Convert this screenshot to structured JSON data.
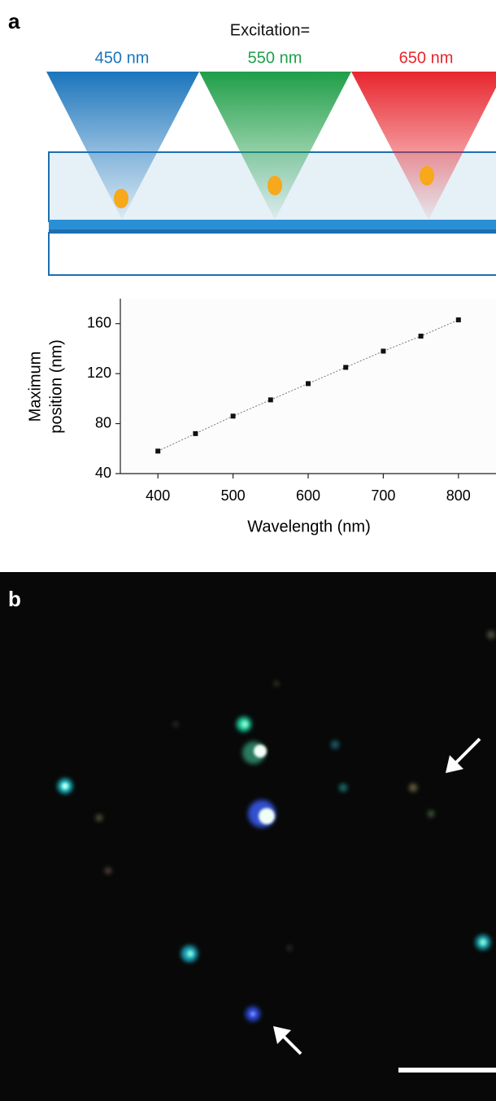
{
  "panel_a": {
    "label": "a",
    "excitation": "Excitation=",
    "wavelengths": [
      "450 nm",
      "550 nm",
      "650 nm"
    ]
  },
  "panel_b": {
    "label": "b"
  },
  "chart_data": {
    "type": "line",
    "x": [
      400,
      450,
      500,
      550,
      600,
      650,
      700,
      750,
      800
    ],
    "values": [
      58,
      72,
      86,
      99,
      112,
      125,
      138,
      150,
      163
    ],
    "color": "#111111",
    "xlabel": "Wavelength (nm)",
    "ylabel": [
      "Maximum",
      "position (nm)"
    ],
    "xlim": [
      350,
      850
    ],
    "xticks": [
      400,
      500,
      600,
      700,
      800
    ],
    "ylim": [
      40,
      180
    ],
    "yticks": [
      40,
      80,
      120,
      160
    ]
  }
}
